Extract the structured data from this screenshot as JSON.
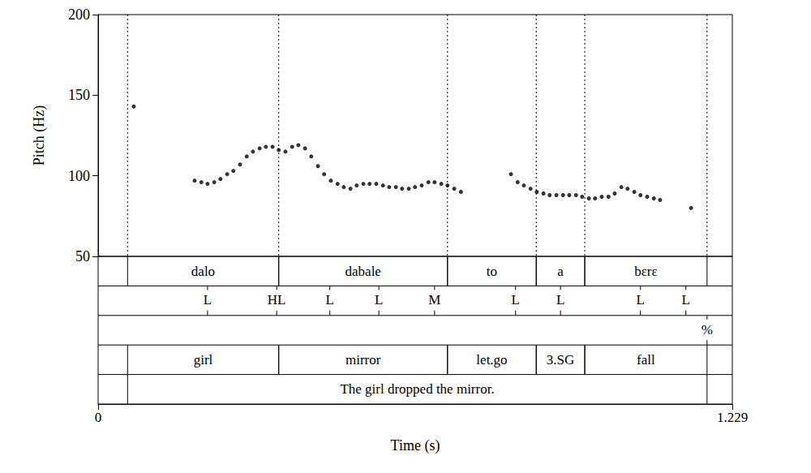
{
  "chart_data": {
    "type": "scatter",
    "x_label": "Time (s)",
    "y_label": "Pitch (Hz)",
    "color": "#000000",
    "marker": "circle",
    "x": [
      0.069,
      0.187,
      0.2,
      0.212,
      0.225,
      0.237,
      0.25,
      0.262,
      0.275,
      0.288,
      0.3,
      0.313,
      0.325,
      0.338,
      0.35,
      0.363,
      0.376,
      0.388,
      0.401,
      0.413,
      0.426,
      0.438,
      0.451,
      0.464,
      0.476,
      0.489,
      0.501,
      0.514,
      0.526,
      0.539,
      0.552,
      0.564,
      0.577,
      0.589,
      0.602,
      0.614,
      0.627,
      0.64,
      0.652,
      0.665,
      0.677,
      0.69,
      0.703,
      0.8,
      0.813,
      0.825,
      0.838,
      0.85,
      0.863,
      0.875,
      0.888,
      0.901,
      0.913,
      0.926,
      0.938,
      0.951,
      0.963,
      0.976,
      0.989,
      1.001,
      1.014,
      1.026,
      1.039,
      1.051,
      1.064,
      1.077,
      1.089,
      1.149
    ],
    "values": [
      143,
      97,
      96,
      95,
      96,
      98,
      101,
      103,
      107,
      112,
      115,
      117,
      118,
      118,
      116,
      115,
      118,
      119,
      117,
      112,
      106,
      101,
      97,
      95,
      93,
      92,
      94,
      95,
      95,
      95,
      94,
      93,
      93,
      92,
      92,
      93,
      94,
      96,
      96,
      95,
      94,
      92,
      90,
      101,
      96,
      94,
      92,
      90,
      89,
      88,
      88,
      88,
      88,
      88,
      87,
      86,
      86,
      87,
      87,
      89,
      93,
      92,
      90,
      88,
      87,
      86,
      85,
      80
    ],
    "xlim": [
      0,
      1.229
    ],
    "xticks": [
      0,
      1.229
    ],
    "ylim": [
      50,
      200
    ],
    "yticks": [
      50,
      100,
      150,
      200
    ],
    "grid": false,
    "tiers": [
      {
        "type": "interval",
        "intervals": [
          {
            "start": 0.057,
            "end": 0.35,
            "text": "dalo"
          },
          {
            "start": 0.35,
            "end": 0.677,
            "text": "dabale"
          },
          {
            "start": 0.677,
            "end": 0.849,
            "text": "to"
          },
          {
            "start": 0.849,
            "end": 0.943,
            "text": "a"
          },
          {
            "start": 0.943,
            "end": 1.18,
            "text": "bɛrɛ"
          }
        ]
      },
      {
        "type": "point",
        "points": [
          {
            "time": 0.212,
            "text": "L"
          },
          {
            "time": 0.346,
            "text": "HL"
          },
          {
            "time": 0.449,
            "text": "L"
          },
          {
            "time": 0.544,
            "text": "L"
          },
          {
            "time": 0.652,
            "text": "M"
          },
          {
            "time": 0.809,
            "text": "L"
          },
          {
            "time": 0.896,
            "text": "L"
          },
          {
            "time": 1.051,
            "text": "L"
          },
          {
            "time": 1.139,
            "text": "L"
          }
        ]
      },
      {
        "type": "point",
        "points": [
          {
            "time": 1.18,
            "text": "%"
          }
        ]
      },
      {
        "type": "interval",
        "intervals": [
          {
            "start": 0.057,
            "end": 0.35,
            "text": "girl"
          },
          {
            "start": 0.35,
            "end": 0.677,
            "text": "mirror"
          },
          {
            "start": 0.677,
            "end": 0.849,
            "text": "let.go"
          },
          {
            "start": 0.849,
            "end": 0.943,
            "text": "3.SG"
          },
          {
            "start": 0.943,
            "end": 1.18,
            "text": "fall"
          }
        ]
      },
      {
        "type": "interval",
        "intervals": [
          {
            "start": 0.057,
            "end": 1.18,
            "text": "The girl dropped the mirror."
          }
        ]
      }
    ]
  }
}
